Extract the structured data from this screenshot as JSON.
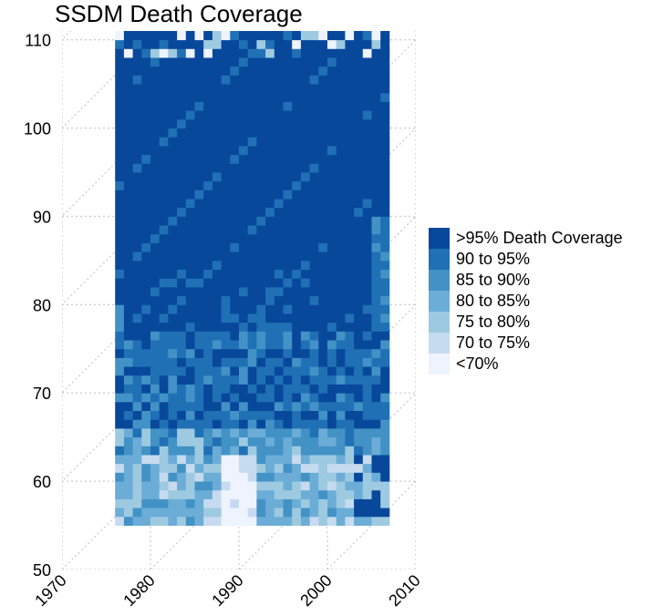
{
  "chart_data": {
    "type": "heatmap",
    "title": "SSDM Death Coverage",
    "xlabel": "",
    "ylabel": "",
    "x_ticks": [
      "1970",
      "1980",
      "1990",
      "2000",
      "2010"
    ],
    "y_ticks": [
      "50",
      "60",
      "70",
      "80",
      "90",
      "100",
      "110"
    ],
    "xlim": [
      1970,
      2010
    ],
    "ylim": [
      50,
      111
    ],
    "grid": true,
    "grid_style": "dotted, including diagonal lifelines",
    "legend_position": "right",
    "legend": [
      {
        "label": ">95% Death Coverage",
        "color": "#08489b"
      },
      {
        "label": "90 to 95%",
        "color": "#2070b5"
      },
      {
        "label": "85 to 90%",
        "color": "#4292c6"
      },
      {
        "label": "80 to 85%",
        "color": "#6badd7"
      },
      {
        "label": "75 to 80%",
        "color": "#9ecae1"
      },
      {
        "label": "70 to 75%",
        "color": "#c6dbef"
      },
      {
        "label": "<70%",
        "color": "#eef3fe"
      }
    ],
    "years": [
      1976,
      2006
    ],
    "ages": [
      55,
      110
    ],
    "bands_by_age": [
      {
        "ages": [
          55,
          63
        ],
        "typical_category": "80 to 85%"
      },
      {
        "ages": [
          63,
          66
        ],
        "typical_category": "85 to 90%"
      },
      {
        "ages": [
          66,
          77
        ],
        "typical_category": "90 to 95%"
      },
      {
        "ages": [
          77,
          108
        ],
        "typical_category": ">95% Death Coverage"
      },
      {
        "ages": [
          108,
          111
        ],
        "typical_category": "mixed"
      }
    ]
  }
}
